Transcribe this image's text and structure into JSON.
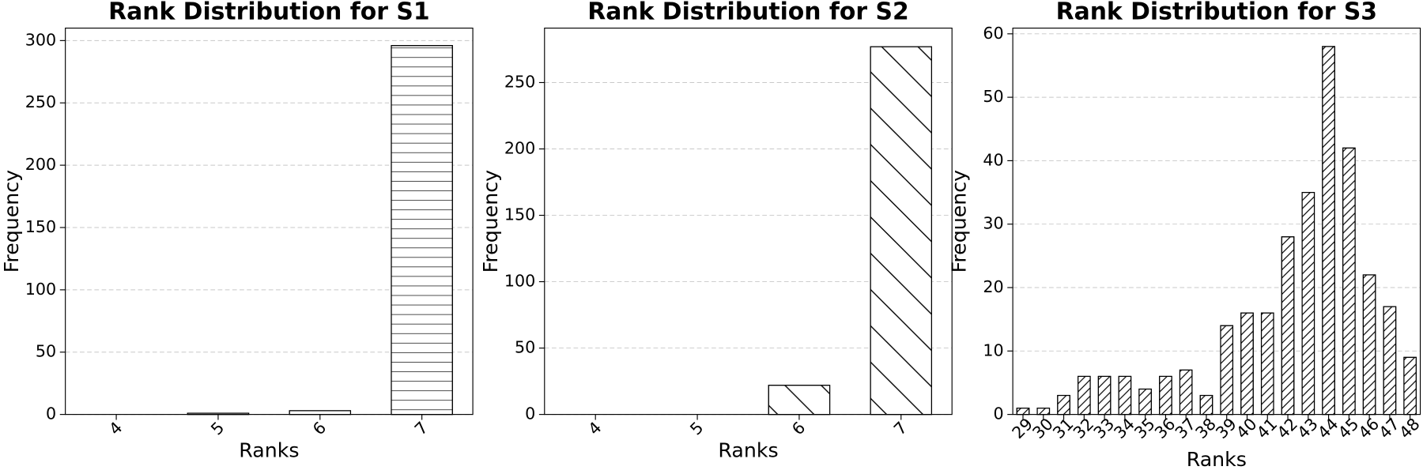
{
  "chart_data": [
    {
      "type": "bar",
      "title": "Rank Distribution for S1",
      "x_label": "Ranks",
      "y_label": "Frequency",
      "categories": [
        "4",
        "5",
        "6",
        "7"
      ],
      "values": [
        0,
        1,
        3,
        296
      ],
      "ylim": [
        0,
        310
      ],
      "yticks": [
        0,
        50,
        100,
        150,
        200,
        250,
        300
      ],
      "grid": true,
      "color": "#ffffff",
      "edge_color": "#000000",
      "hatch": "-"
    },
    {
      "type": "bar",
      "title": "Rank Distribution for S2",
      "x_label": "Ranks",
      "y_label": "Frequency",
      "categories": [
        "4",
        "5",
        "6",
        "7"
      ],
      "values": [
        0,
        0,
        22,
        277
      ],
      "ylim": [
        0,
        291
      ],
      "yticks": [
        0,
        50,
        100,
        150,
        200,
        250
      ],
      "grid": true,
      "color": "#ffffff",
      "edge_color": "#000000",
      "hatch": "\\"
    },
    {
      "type": "bar",
      "title": "Rank Distribution for S3",
      "x_label": "Ranks",
      "y_label": "Frequency",
      "categories": [
        "29",
        "30",
        "31",
        "32",
        "33",
        "34",
        "35",
        "36",
        "37",
        "38",
        "39",
        "40",
        "41",
        "42",
        "43",
        "44",
        "45",
        "46",
        "47",
        "48"
      ],
      "values": [
        1,
        1,
        3,
        6,
        6,
        6,
        4,
        6,
        7,
        3,
        14,
        16,
        16,
        28,
        35,
        58,
        42,
        22,
        17,
        9
      ],
      "ylim": [
        0,
        60.9
      ],
      "yticks": [
        0,
        10,
        20,
        30,
        40,
        50,
        60
      ],
      "grid": true,
      "color": "#ffffff",
      "edge_color": "#000000",
      "hatch": "/"
    }
  ]
}
